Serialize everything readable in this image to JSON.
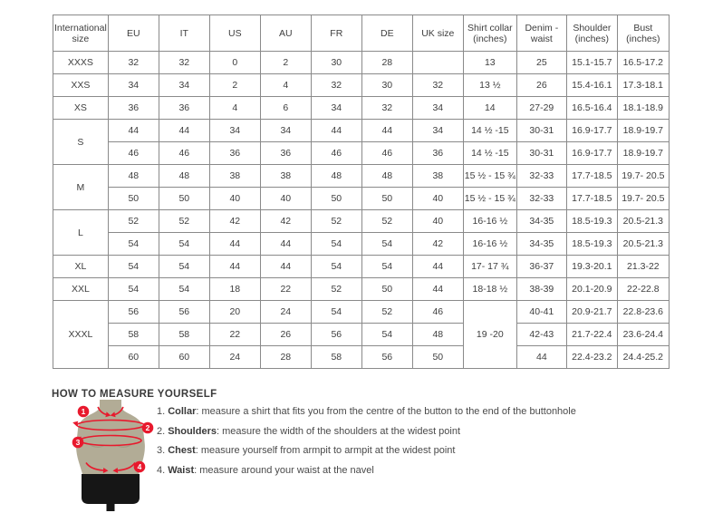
{
  "table": {
    "headers": [
      "International size",
      "EU",
      "IT",
      "US",
      "AU",
      "FR",
      "DE",
      "UK size",
      "Shirt collar (inches)",
      "Denim - waist",
      "Shoulder (inches)",
      "Bust (inches)"
    ],
    "rows": [
      [
        {
          "v": "XXXS"
        },
        "32",
        "32",
        "0",
        "2",
        "30",
        "28",
        "",
        "13",
        "25",
        "15.1-15.7",
        "16.5-17.2"
      ],
      [
        {
          "v": "XXS"
        },
        "34",
        "34",
        "2",
        "4",
        "32",
        "30",
        "32",
        "13 ½",
        "26",
        "15.4-16.1",
        "17.3-18.1"
      ],
      [
        {
          "v": "XS"
        },
        "36",
        "36",
        "4",
        "6",
        "34",
        "32",
        "34",
        "14",
        "27-29",
        "16.5-16.4",
        "18.1-18.9"
      ],
      [
        {
          "v": "S",
          "rowspan": 2
        },
        "44",
        "44",
        "34",
        "34",
        "44",
        "44",
        "34",
        "14 ½ -15",
        "30-31",
        "16.9-17.7",
        "18.9-19.7"
      ],
      [
        null,
        "46",
        "46",
        "36",
        "36",
        "46",
        "46",
        "36",
        "14 ½ -15",
        "30-31",
        "16.9-17.7",
        "18.9-19.7"
      ],
      [
        {
          "v": "M",
          "rowspan": 2
        },
        "48",
        "48",
        "38",
        "38",
        "48",
        "48",
        "38",
        "15 ½ - 15 ¾",
        "32-33",
        "17.7-18.5",
        "19.7- 20.5"
      ],
      [
        null,
        "50",
        "50",
        "40",
        "40",
        "50",
        "50",
        "40",
        "15 ½ - 15 ¾",
        "32-33",
        "17.7-18.5",
        "19.7- 20.5"
      ],
      [
        {
          "v": "L",
          "rowspan": 2
        },
        "52",
        "52",
        "42",
        "42",
        "52",
        "52",
        "40",
        "16-16 ½",
        "34-35",
        "18.5-19.3",
        "20.5-21.3"
      ],
      [
        null,
        "54",
        "54",
        "44",
        "44",
        "54",
        "54",
        "42",
        "16-16 ½",
        "34-35",
        "18.5-19.3",
        "20.5-21.3"
      ],
      [
        {
          "v": "XL"
        },
        "54",
        "54",
        "44",
        "44",
        "54",
        "54",
        "44",
        "17- 17 ¾",
        "36-37",
        "19.3-20.1",
        "21.3-22"
      ],
      [
        {
          "v": "XXL"
        },
        "54",
        "54",
        "18",
        "22",
        "52",
        "50",
        "44",
        "18-18 ½",
        "38-39",
        "20.1-20.9",
        "22-22.8"
      ],
      [
        {
          "v": "XXXL",
          "rowspan": 3
        },
        "56",
        "56",
        "20",
        "24",
        "54",
        "52",
        "46",
        {
          "v": "19 -20",
          "rowspan": 3
        },
        "40-41",
        "20.9-21.7",
        "22.8-23.6"
      ],
      [
        null,
        "58",
        "58",
        "22",
        "26",
        "56",
        "54",
        "48",
        null,
        "42-43",
        "21.7-22.4",
        "23.6-24.4"
      ],
      [
        null,
        "60",
        "60",
        "24",
        "28",
        "58",
        "56",
        "50",
        null,
        "44",
        "22.4-23.2",
        "24.4-25.2"
      ]
    ]
  },
  "measure": {
    "title": "HOW TO MEASURE YOURSELF",
    "items": [
      {
        "num": "1.",
        "bold": "Collar",
        "text": ": measure a shirt that fits you from the centre of the button to the end of the buttonhole"
      },
      {
        "num": "2.",
        "bold": "Shoulders",
        "text": ": measure the width of the shoulders at the widest point"
      },
      {
        "num": "3.",
        "bold": "Chest",
        "text": ": measure yourself from armpit to armpit at the widest point"
      },
      {
        "num": "4.",
        "bold": "Waist",
        "text": ": measure around your waist at the navel"
      }
    ],
    "badges": [
      "1",
      "2",
      "3",
      "4"
    ]
  },
  "colors": {
    "accent_red": "#e8192d",
    "mannequin_body": "#b2ac96",
    "mannequin_shorts": "#161616",
    "table_border": "#8a8a8a",
    "text": "#3e3e3e"
  }
}
